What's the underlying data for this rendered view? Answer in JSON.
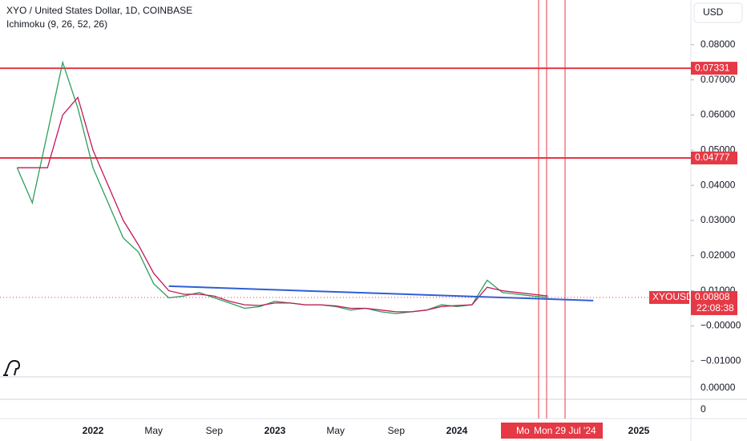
{
  "chart_data": {
    "type": "line",
    "title": "XYO / United States Dollar, 1D, COINBASE",
    "subtitle": "Ichimoku (9, 26, 52, 26)",
    "currency": "USD",
    "symbol": "XYOUSD",
    "last_price": 0.00808,
    "countdown": "22:08:38",
    "crosshair_date": "Mon 29 Jul '24",
    "hidden_date_label": "Mo",
    "x": [
      "2021-08",
      "2021-09",
      "2021-10",
      "2021-11",
      "2021-12",
      "2022-01",
      "2022-02",
      "2022-03",
      "2022-04",
      "2022-05",
      "2022-06",
      "2022-07",
      "2022-08",
      "2022-09",
      "2022-10",
      "2022-11",
      "2022-12",
      "2023-01",
      "2023-02",
      "2023-03",
      "2023-04",
      "2023-05",
      "2023-06",
      "2023-07",
      "2023-08",
      "2023-09",
      "2023-10",
      "2023-11",
      "2023-12",
      "2024-01",
      "2024-02",
      "2024-03",
      "2024-04",
      "2024-05",
      "2024-06",
      "2024-07"
    ],
    "series": [
      {
        "color": "#2e9e5b",
        "values": [
          0.045,
          0.035,
          0.055,
          0.075,
          0.062,
          0.045,
          0.035,
          0.025,
          0.021,
          0.012,
          0.008,
          0.0085,
          0.0095,
          0.008,
          0.0065,
          0.005,
          0.0055,
          0.007,
          0.0065,
          0.006,
          0.006,
          0.0055,
          0.0045,
          0.005,
          0.004,
          0.0035,
          0.004,
          0.0045,
          0.006,
          0.0055,
          0.006,
          0.013,
          0.0095,
          0.009,
          0.0085,
          0.00808
        ]
      },
      {
        "color": "#c2185b",
        "values": [
          0.045,
          0.045,
          0.045,
          0.06,
          0.065,
          0.05,
          0.04,
          0.03,
          0.023,
          0.015,
          0.01,
          0.009,
          0.009,
          0.0085,
          0.007,
          0.006,
          0.0058,
          0.0065,
          0.0065,
          0.006,
          0.006,
          0.0057,
          0.005,
          0.005,
          0.0045,
          0.004,
          0.004,
          0.0045,
          0.0055,
          0.0058,
          0.006,
          0.011,
          0.01,
          0.0095,
          0.009,
          0.0085
        ]
      }
    ],
    "trendline": {
      "color": "#2f5fd6",
      "x": [
        "2022-06",
        "2024-10"
      ],
      "values": [
        0.0113,
        0.0072
      ]
    },
    "hlines": [
      0.07331,
      0.04777
    ],
    "hline_color": "#e53945",
    "ylim": [
      -0.0145,
      0.0893
    ],
    "yticks": [
      {
        "value": 0.08,
        "label": "0.08000"
      },
      {
        "value": 0.07,
        "label": "0.07000"
      },
      {
        "value": 0.06,
        "label": "0.06000"
      },
      {
        "value": 0.05,
        "label": "0.05000"
      },
      {
        "value": 0.04,
        "label": "0.04000"
      },
      {
        "value": 0.03,
        "label": "0.03000"
      },
      {
        "value": 0.02,
        "label": "0.02000"
      },
      {
        "value": 0.01,
        "label": "0.01000"
      },
      {
        "value": 0,
        "label": "−0.00000"
      },
      {
        "value": -0.01,
        "label": "−0.01000"
      }
    ],
    "xticks": [
      {
        "value": "2022-01",
        "label": "2022"
      },
      {
        "value": "2022-05",
        "label": "May"
      },
      {
        "value": "2022-09",
        "label": "Sep"
      },
      {
        "value": "2023-01",
        "label": "2023"
      },
      {
        "value": "2023-05",
        "label": "May"
      },
      {
        "value": "2023-09",
        "label": "Sep"
      },
      {
        "value": "2024-01",
        "label": "2024"
      },
      {
        "value": "2025-01",
        "label": "2025"
      }
    ],
    "pane_labels": [
      "0.00000",
      "0"
    ]
  }
}
